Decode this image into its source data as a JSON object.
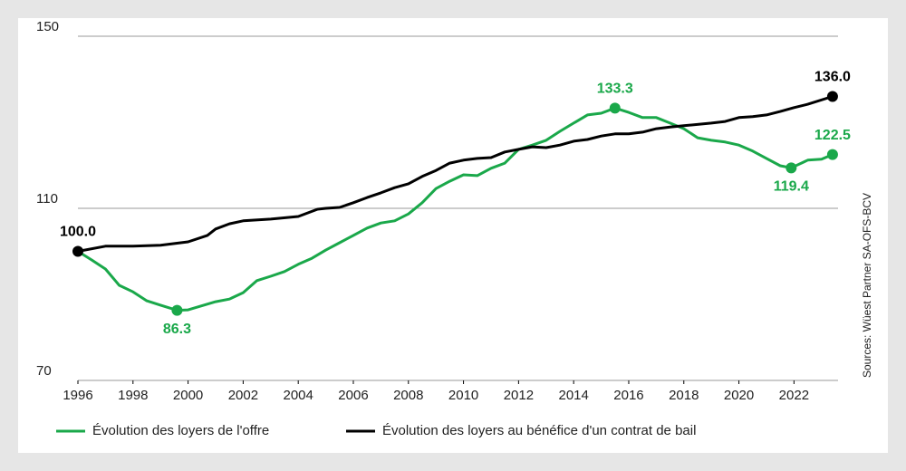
{
  "chart_data": {
    "type": "line",
    "xlim": [
      1996,
      2023.6
    ],
    "xticks": [
      1996,
      1998,
      2000,
      2002,
      2004,
      2006,
      2008,
      2010,
      2012,
      2014,
      2016,
      2018,
      2020,
      2022
    ],
    "ylim": [
      70,
      150
    ],
    "yticks": [
      70,
      110,
      150
    ],
    "grid": true,
    "legend": "bottom",
    "source": "Sources: Wüest Partner SA-OFS-BCV",
    "series": [
      {
        "name": "Évolution des loyers de l'offre",
        "color": "#1aa84a",
        "x": [
          1996,
          1996.5,
          1997,
          1997.5,
          1998,
          1998.5,
          1999,
          1999.6,
          2000,
          2001,
          2001.5,
          2002,
          2002.5,
          2003,
          2003.5,
          2004,
          2004.5,
          2005,
          2005.5,
          2006,
          2006.5,
          2007,
          2007.5,
          2008,
          2008.5,
          2009,
          2009.5,
          2010,
          2010.5,
          2011,
          2011.5,
          2012,
          2012.5,
          2013,
          2013.5,
          2014,
          2014.5,
          2015,
          2015.5,
          2016,
          2016.5,
          2017,
          2017.5,
          2018,
          2018.5,
          2019,
          2019.5,
          2020,
          2020.5,
          2021,
          2021.5,
          2021.9,
          2022.5,
          2023,
          2023.4
        ],
        "values": [
          100,
          98,
          95.9,
          92.1,
          90.6,
          88.5,
          87.5,
          86.3,
          86.4,
          88.3,
          88.9,
          90.4,
          93.2,
          94.2,
          95.3,
          97,
          98.4,
          100.3,
          102,
          103.7,
          105.4,
          106.6,
          107.1,
          108.7,
          111.3,
          114.6,
          116.3,
          117.8,
          117.6,
          119.3,
          120.5,
          123.7,
          124.7,
          125.8,
          127.9,
          129.8,
          131.7,
          132.1,
          133.3,
          132.3,
          131.1,
          131.1,
          129.8,
          128.5,
          126.4,
          125.8,
          125.4,
          124.7,
          123.3,
          121.6,
          119.9,
          119.4,
          121.2,
          121.4,
          122.5
        ]
      },
      {
        "name": "Évolution des loyers au bénéfice d'un contrat de bail",
        "color": "#000000",
        "x": [
          1996,
          1997,
          1998,
          1999,
          2000,
          2000.7,
          2001,
          2001.5,
          2002,
          2003,
          2004,
          2004.7,
          2005,
          2005.5,
          2006,
          2006.5,
          2007,
          2007.5,
          2008,
          2008.5,
          2009,
          2009.5,
          2010,
          2010.5,
          2011,
          2011.5,
          2012,
          2012.5,
          2013,
          2013.5,
          2014,
          2014.5,
          2015,
          2015.5,
          2016,
          2016.5,
          2017,
          2017.5,
          2018,
          2019,
          2019.5,
          2020,
          2020.5,
          2021,
          2021.5,
          2022,
          2022.5,
          2023.4
        ],
        "values": [
          100,
          101.2,
          101.2,
          101.4,
          102.2,
          103.7,
          105.2,
          106.4,
          107.1,
          107.5,
          108.1,
          109.8,
          110,
          110.2,
          111.3,
          112.5,
          113.6,
          114.8,
          115.7,
          117.4,
          118.8,
          120.5,
          121.2,
          121.6,
          121.8,
          123.1,
          123.7,
          124.3,
          124.1,
          124.7,
          125.6,
          126,
          126.8,
          127.3,
          127.3,
          127.7,
          128.5,
          128.9,
          129.2,
          129.8,
          130.2,
          131.1,
          131.3,
          131.7,
          132.5,
          133.4,
          134.2,
          136
        ]
      }
    ],
    "annotations": [
      {
        "x": 1996,
        "y": 100,
        "label": "100.0",
        "color": "#000000",
        "position": "above"
      },
      {
        "x": 1999.6,
        "y": 86.3,
        "label": "86.3",
        "color": "#1aa84a",
        "position": "below"
      },
      {
        "x": 2015.5,
        "y": 133.3,
        "label": "133.3",
        "color": "#1aa84a",
        "position": "above"
      },
      {
        "x": 2021.9,
        "y": 119.4,
        "label": "119.4",
        "color": "#1aa84a",
        "position": "below"
      },
      {
        "x": 2023.4,
        "y": 122.5,
        "label": "122.5",
        "color": "#1aa84a",
        "position": "above"
      },
      {
        "x": 2023.4,
        "y": 136,
        "label": "136.0",
        "color": "#000000",
        "position": "above"
      }
    ]
  }
}
